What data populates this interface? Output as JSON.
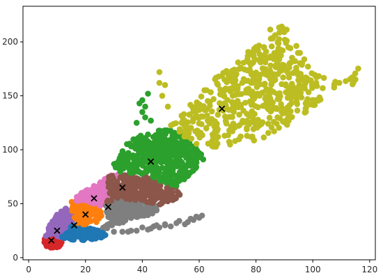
{
  "chart_data": {
    "type": "scatter",
    "title": "",
    "xlabel": "",
    "ylabel": "",
    "xlim": [
      -2,
      122
    ],
    "ylim": [
      -2,
      233
    ],
    "grid": false,
    "legend": "none",
    "x_ticks": [
      0,
      20,
      40,
      60,
      80,
      100,
      120
    ],
    "y_ticks": [
      0,
      50,
      100,
      150,
      200
    ],
    "x_tick_labels": [
      "0",
      "20",
      "40",
      "60",
      "80",
      "100",
      "120"
    ],
    "y_tick_labels": [
      "0",
      "50",
      "100",
      "150",
      "200"
    ],
    "centroid_marker": "x",
    "centroid_color": "#000000",
    "clusters": [
      {
        "color": "#d62728",
        "centroid": [
          8,
          16
        ],
        "region": [
          [
            5,
            15
          ],
          [
            6,
            11
          ],
          [
            8,
            9
          ],
          [
            11,
            10
          ],
          [
            12,
            14
          ],
          [
            11,
            19
          ],
          [
            8,
            22
          ],
          [
            6,
            20
          ]
        ],
        "count": 130
      },
      {
        "color": "#9467bd",
        "centroid": [
          10,
          25
        ],
        "region": [
          [
            6,
            20
          ],
          [
            7,
            28
          ],
          [
            9,
            38
          ],
          [
            13,
            46
          ],
          [
            16,
            42
          ],
          [
            16,
            34
          ],
          [
            14,
            24
          ],
          [
            11,
            19
          ],
          [
            8,
            22
          ]
        ],
        "count": 160
      },
      {
        "color": "#1f77b4",
        "centroid": [
          16,
          30
        ],
        "region": [
          [
            11,
            19
          ],
          [
            14,
            17
          ],
          [
            19,
            16
          ],
          [
            25,
            18
          ],
          [
            28,
            21
          ],
          [
            25,
            25
          ],
          [
            20,
            28
          ],
          [
            16,
            34
          ],
          [
            14,
            24
          ]
        ],
        "count": 160
      },
      {
        "color": "#ff7f0e",
        "centroid": [
          20,
          40
        ],
        "region": [
          [
            14,
            45
          ],
          [
            15,
            52
          ],
          [
            20,
            53
          ],
          [
            25,
            48
          ],
          [
            26,
            40
          ],
          [
            24,
            33
          ],
          [
            19,
            30
          ],
          [
            16,
            34
          ],
          [
            16,
            42
          ]
        ],
        "count": 140
      },
      {
        "color": "#e377c2",
        "centroid": [
          23,
          55
        ],
        "region": [
          [
            15,
            52
          ],
          [
            18,
            60
          ],
          [
            24,
            68
          ],
          [
            28,
            76
          ],
          [
            33,
            78
          ],
          [
            28,
            62
          ],
          [
            27,
            50
          ],
          [
            25,
            48
          ],
          [
            20,
            53
          ]
        ],
        "count": 210
      },
      {
        "color": "#7f7f7f",
        "centroid": [
          28,
          47
        ],
        "region": [
          [
            25,
            25
          ],
          [
            28,
            32
          ],
          [
            27,
            48
          ],
          [
            31,
            55
          ],
          [
            38,
            52
          ],
          [
            45,
            50
          ],
          [
            45,
            40
          ],
          [
            37,
            37
          ],
          [
            29,
            28
          ]
        ],
        "count": 200
      },
      {
        "color": "#8c564b",
        "centroid": [
          33,
          65
        ],
        "region": [
          [
            27,
            50
          ],
          [
            28,
            62
          ],
          [
            28,
            76
          ],
          [
            40,
            77
          ],
          [
            52,
            66
          ],
          [
            54,
            56
          ],
          [
            46,
            49
          ],
          [
            38,
            52
          ],
          [
            31,
            55
          ]
        ],
        "count": 230
      },
      {
        "color": "#2ca02c",
        "centroid": [
          43,
          89
        ],
        "region": [
          [
            33,
            100
          ],
          [
            35,
            108
          ],
          [
            42,
            116
          ],
          [
            48,
            120
          ],
          [
            52,
            117
          ],
          [
            57,
            107
          ],
          [
            62,
            93
          ],
          [
            58,
            78
          ],
          [
            52,
            66
          ],
          [
            40,
            77
          ],
          [
            33,
            78
          ],
          [
            29,
            85
          ]
        ],
        "count": 420
      },
      {
        "color": "#bcbd22",
        "centroid": [
          68,
          138
        ],
        "region": [
          [
            49,
            120
          ],
          [
            56,
            140
          ],
          [
            65,
            165
          ],
          [
            75,
            185
          ],
          [
            84,
            210
          ],
          [
            90,
            220
          ],
          [
            100,
            170
          ],
          [
            115,
            160
          ],
          [
            118,
            180
          ],
          [
            100,
            140
          ],
          [
            90,
            120
          ],
          [
            80,
            108
          ],
          [
            65,
            100
          ],
          [
            57,
            107
          ],
          [
            52,
            117
          ]
        ],
        "count": 520
      }
    ],
    "stragglers": [
      {
        "color": "#7f7f7f",
        "points": [
          [
            40,
            28
          ],
          [
            44,
            29
          ],
          [
            48,
            30
          ],
          [
            52,
            32
          ],
          [
            56,
            33
          ],
          [
            58,
            35
          ],
          [
            60,
            37
          ],
          [
            61,
            39
          ],
          [
            55,
            31
          ],
          [
            50,
            29
          ],
          [
            46,
            28
          ],
          [
            42,
            26
          ],
          [
            38,
            25
          ],
          [
            35,
            24
          ],
          [
            33,
            24
          ],
          [
            45,
            30
          ],
          [
            53,
            34
          ],
          [
            57,
            36
          ],
          [
            59,
            38
          ],
          [
            48,
            31
          ],
          [
            43,
            27
          ],
          [
            36,
            25
          ],
          [
            30,
            24
          ]
        ]
      },
      {
        "color": "#2ca02c",
        "points": [
          [
            38,
            125
          ],
          [
            40,
            135
          ],
          [
            41,
            140
          ],
          [
            40,
            146
          ],
          [
            42,
            152
          ],
          [
            39,
            143
          ],
          [
            41,
            130
          ],
          [
            43,
            127
          ]
        ]
      },
      {
        "color": "#bcbd22",
        "points": [
          [
            46,
            172
          ],
          [
            48,
            160
          ],
          [
            46,
            162
          ],
          [
            47,
            150
          ],
          [
            49,
            140
          ]
        ]
      },
      {
        "color": "#1f77b4",
        "points": [
          [
            22,
            20
          ],
          [
            24,
            22
          ],
          [
            26,
            23
          ],
          [
            27,
            21
          ],
          [
            25,
            19
          ]
        ]
      }
    ]
  }
}
